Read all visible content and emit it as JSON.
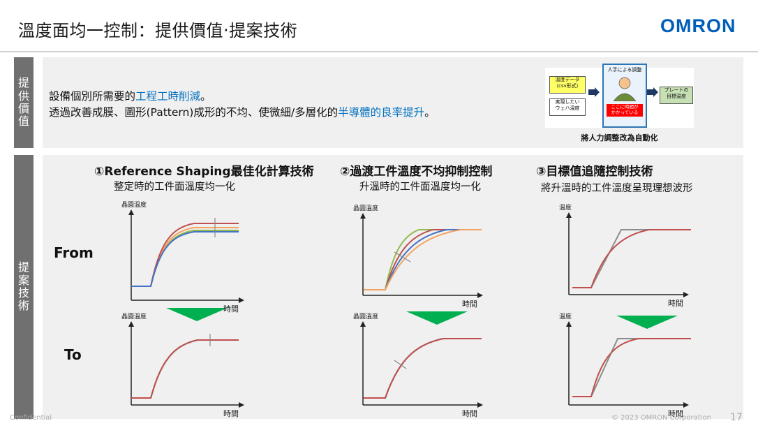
{
  "slide": {
    "title": "溫度面均一控制：提供價值‧提案技術",
    "logo": "OMRON",
    "sidebar_top": "提供價值",
    "sidebar_bottom": "提案技術",
    "value_line1_pre": "設備個別所需要的",
    "value_line1_hl": "工程工時削減",
    "value_line1_post": "。",
    "value_line2_pre": "透過改善成膜、圖形(Pattern)成形的不均、使微細/多層化的",
    "value_line2_hl": "半導體的良率提升",
    "value_line2_post": "。",
    "flow": {
      "box1": "溫度データ\n（csv形式）",
      "box2": "実現したい\nウェハ温度",
      "center_label": "人手による調整",
      "center_note": "ここに時間が\nかかっている",
      "box3": "プレートの\n目標温度",
      "caption": "將人力調整改為自動化"
    },
    "techs": [
      {
        "title": "①Reference Shaping最佳化計算技術",
        "subtitle": "整定時的工件面溫度均一化"
      },
      {
        "title": "②過渡工件溫度不均抑制控制",
        "subtitle": "升溫時的工件面溫度均一化"
      },
      {
        "title": "③目標值追隨控制技術",
        "subtitle": "將升溫時的工件溫度呈現理想波形"
      }
    ],
    "row_from": "From",
    "row_to": "To",
    "axis": {
      "y_wafer": "晶圓溫度",
      "y_temp": "溫度",
      "x_time": "時間"
    },
    "footer_left": "Confidential",
    "footer_right": "© 2023 OMRON Corporation",
    "page_number": "17"
  },
  "colors": {
    "accent_blue": "#0070c0",
    "logo_blue": "#005eb8",
    "arrow_green": "#00b050",
    "sidebar_gray": "#707070"
  }
}
